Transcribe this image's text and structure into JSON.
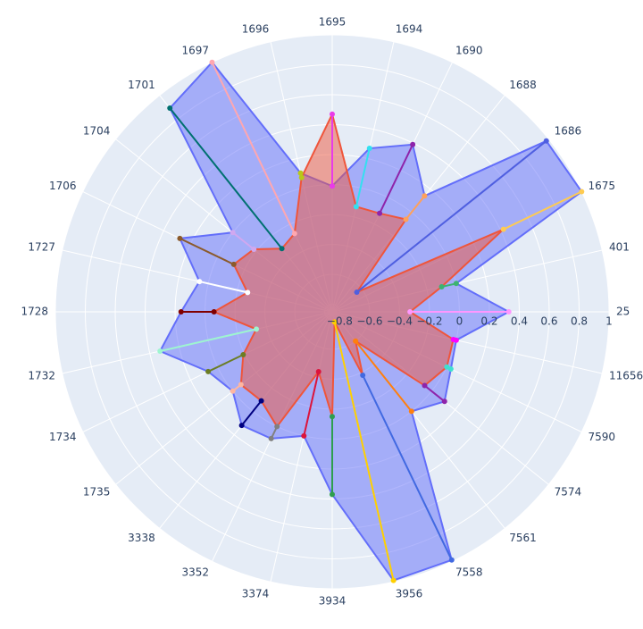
{
  "chart_data": {
    "type": "radar",
    "categories": [
      "25",
      "401",
      "1675",
      "1686",
      "1688",
      "1690",
      "1694",
      "1695",
      "1696",
      "1697",
      "1701",
      "1704",
      "1706",
      "1727",
      "1728",
      "1732",
      "1734",
      "1735",
      "3338",
      "3352",
      "3374",
      "3934",
      "3956",
      "7558",
      "7561",
      "7574",
      "7590",
      "11656"
    ],
    "series": [
      {
        "color": "#636efa",
        "values": [
          0.33,
          0.0,
          1.0,
          0.98,
          0.14,
          0.39,
          0.27,
          -0.01,
          0.1,
          1.0,
          0.89,
          0.0,
          0.28,
          0.06,
          0.16,
          0.33,
          0.07,
          0.0,
          0.12,
          0.09,
          0.0,
          0.37,
          0.99,
          0.99,
          0.0,
          0.11,
          0.03,
          0.0
        ]
      },
      {
        "color": "#ef553b",
        "values": [
          -0.33,
          -0.1,
          0.42,
          -0.64,
          -0.06,
          -0.12,
          -0.13,
          0.47,
          0.07,
          -0.27,
          -0.31,
          -0.18,
          -0.12,
          -0.27,
          -0.06,
          -0.33,
          -0.19,
          -0.07,
          -0.09,
          0.0,
          -0.44,
          -0.15,
          -0.78,
          -0.38,
          -0.6,
          -0.06,
          0.0,
          -0.02
        ]
      }
    ],
    "segment_colors": [
      "#ff97ff",
      "#3cb371",
      "#fecb52",
      "#4f5fe0",
      "#ffa15a",
      "#8e24aa",
      "#33e0f0",
      "#e93be8",
      "#b8c81a",
      "#ffa7b0",
      "#007070",
      "#d0a8f0",
      "#8b5a2b",
      "#ffffff",
      "#800000",
      "#9ef5d0",
      "#6b7d23",
      "#ffb6a0",
      "#000080",
      "#808080",
      "#dc143c",
      "#2e9e4f",
      "#ffd000",
      "#4169e1",
      "#ff7f0e",
      "#8e24aa",
      "#40e0d0",
      "#ff00ff"
    ],
    "rlim": [
      -0.85,
      1
    ],
    "rticks": [
      {
        "value": -0.8,
        "label": "−0.8"
      },
      {
        "value": -0.6,
        "label": "−0.6"
      },
      {
        "value": -0.4,
        "label": "−0.4"
      },
      {
        "value": -0.2,
        "label": "−0.2"
      },
      0,
      0.2,
      0.4,
      0.6,
      0.8,
      1
    ],
    "grid": true
  }
}
